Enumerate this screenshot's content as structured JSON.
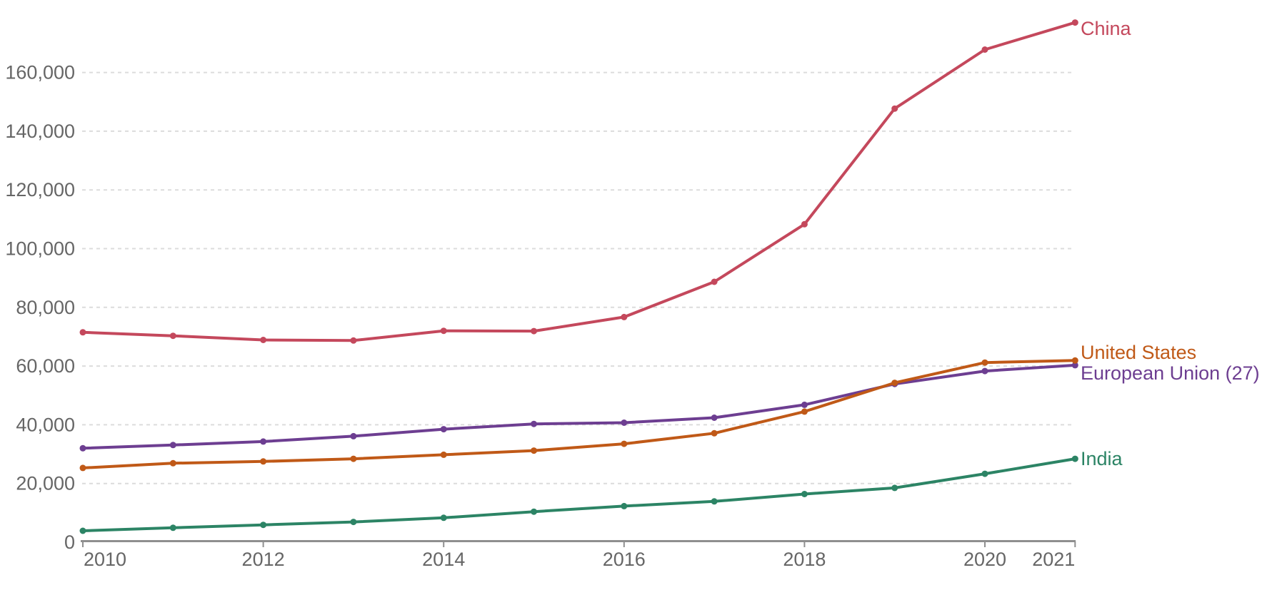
{
  "chart_data": {
    "type": "line",
    "title": "",
    "xlabel": "",
    "ylabel": "",
    "x": [
      2010,
      2011,
      2012,
      2013,
      2014,
      2015,
      2016,
      2017,
      2018,
      2019,
      2020,
      2021
    ],
    "x_ticks": [
      "2010",
      "2012",
      "2014",
      "2016",
      "2018",
      "2020",
      "2021"
    ],
    "y_ticks": [
      {
        "value": 0,
        "label": "0"
      },
      {
        "value": 20000,
        "label": "20,000"
      },
      {
        "value": 40000,
        "label": "40,000"
      },
      {
        "value": 60000,
        "label": "60,000"
      },
      {
        "value": 80000,
        "label": "80,000"
      },
      {
        "value": 100000,
        "label": "100,000"
      },
      {
        "value": 120000,
        "label": "120,000"
      },
      {
        "value": 140000,
        "label": "140,000"
      },
      {
        "value": 160000,
        "label": "160,000"
      }
    ],
    "ylim": [
      0,
      180000
    ],
    "xlim": [
      2010,
      2021
    ],
    "grid": "horizontal-dashed",
    "legend_position": "line-end-labels",
    "series": [
      {
        "name": "European Union (27)",
        "color": "#6D3E91",
        "values": [
          32000,
          33100,
          34300,
          36100,
          38500,
          40300,
          40700,
          42400,
          46800,
          53900,
          58300,
          60300
        ]
      },
      {
        "name": "United States",
        "color": "#C05917",
        "values": [
          25300,
          26900,
          27500,
          28400,
          29800,
          31200,
          33500,
          37100,
          44500,
          54300,
          61200,
          61900
        ]
      },
      {
        "name": "China",
        "color": "#C4485C",
        "values": [
          71500,
          70300,
          68900,
          68700,
          72000,
          71900,
          76700,
          88700,
          108300,
          147700,
          167800,
          177000
        ]
      },
      {
        "name": "India",
        "color": "#2C8465",
        "values": [
          3900,
          4900,
          5900,
          6900,
          8300,
          10400,
          12300,
          13900,
          16400,
          18500,
          23300,
          28400
        ]
      }
    ],
    "colors": {
      "axis_text": "#666666",
      "axis_line": "#8F8F8F",
      "gridline": "#DCDCDC"
    }
  }
}
